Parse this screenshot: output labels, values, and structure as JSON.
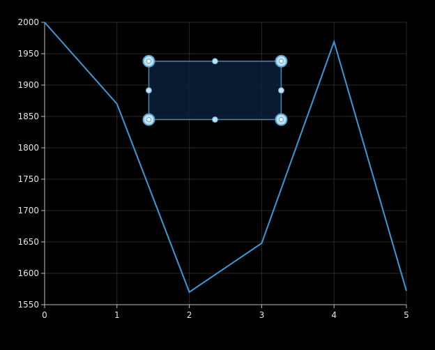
{
  "chart_data": {
    "type": "line",
    "title": "",
    "xlabel": "",
    "ylabel": "",
    "x": [
      0,
      1,
      2,
      3,
      4,
      5
    ],
    "series": [
      {
        "values": [
          2000,
          1870,
          1570,
          1648,
          1969,
          1572
        ]
      }
    ],
    "xlim": [
      0,
      5
    ],
    "ylim": [
      1550,
      2000
    ],
    "x_ticks": [
      "0",
      "1",
      "2",
      "3",
      "4",
      "5"
    ],
    "y_ticks": [
      "1550",
      "1600",
      "1650",
      "1700",
      "1750",
      "1800",
      "1850",
      "1900",
      "1950",
      "2000"
    ],
    "grid": true,
    "selection_box": {
      "x_range": [
        1.44,
        3.27
      ],
      "y_range": [
        1845,
        1938
      ]
    }
  },
  "colors": {
    "background": "#000000",
    "line": "#3a9ad9",
    "grid": "#2a2a2a",
    "axis": "#bfbfbf",
    "selection_fill": "#0b2038",
    "selection_stroke": "#4a86b8",
    "handle_fill": "#bfe3f5",
    "handle_ring": "#5aa3d0"
  }
}
